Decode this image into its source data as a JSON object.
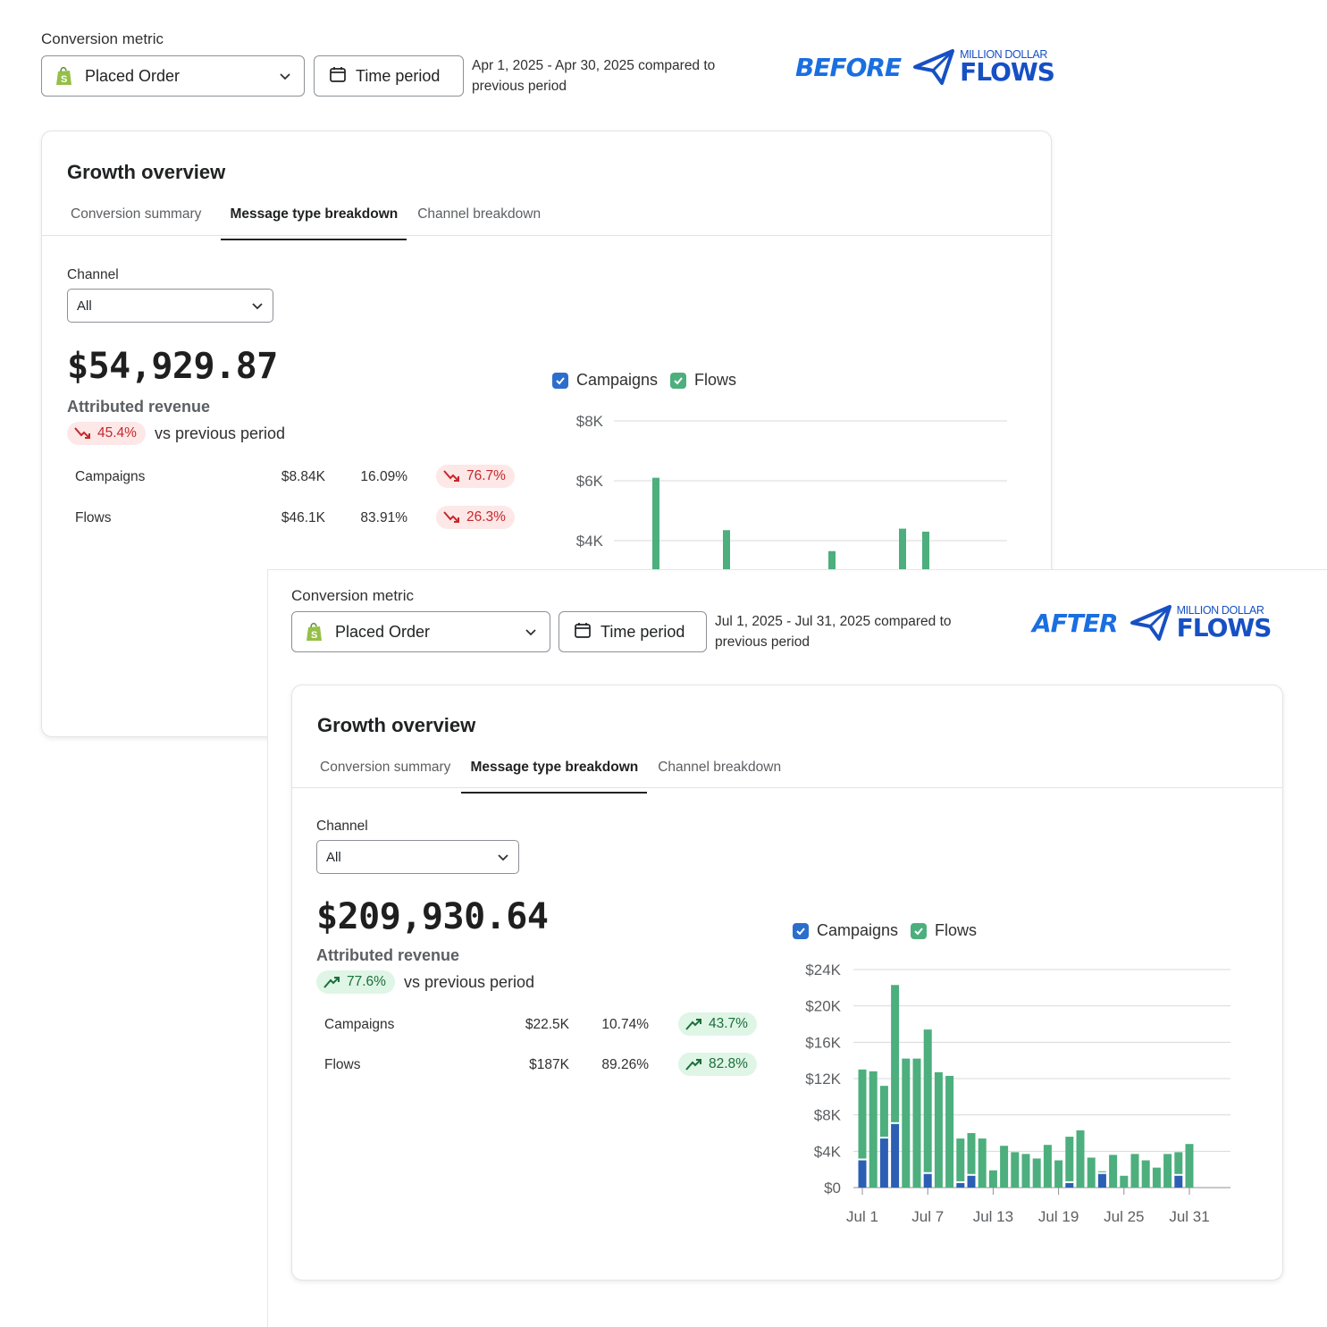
{
  "before": {
    "badge": "BEFORE",
    "brand_small": "MILLION DOLLAR",
    "brand_big": "FLOWS",
    "conversion_metric_label": "Conversion metric",
    "metric_value": "Placed Order",
    "time_button": "Time period",
    "period_line1": "Apr 1, 2025 - Apr 30, 2025 compared to",
    "period_line2": "previous period",
    "card_title": "Growth overview",
    "tabs": [
      "Conversion summary",
      "Message type breakdown",
      "Channel breakdown"
    ],
    "channel_label": "Channel",
    "channel_value": "All",
    "revenue": "$54,929.87",
    "revenue_label": "Attributed revenue",
    "change": "45.4%",
    "change_dir": "down",
    "vs_text": "vs previous period",
    "rows": [
      {
        "name": "Campaigns",
        "amount": "$8.84K",
        "share": "16.09%",
        "change": "76.7%",
        "dir": "down"
      },
      {
        "name": "Flows",
        "amount": "$46.1K",
        "share": "83.91%",
        "change": "26.3%",
        "dir": "down"
      }
    ],
    "legend": [
      "Campaigns",
      "Flows"
    ]
  },
  "after": {
    "badge": "AFTER",
    "brand_small": "MILLION DOLLAR",
    "brand_big": "FLOWS",
    "conversion_metric_label": "Conversion metric",
    "metric_value": "Placed Order",
    "time_button": "Time period",
    "period_line1": "Jul 1, 2025 - Jul 31, 2025 compared to",
    "period_line2": "previous period",
    "card_title": "Growth overview",
    "tabs": [
      "Conversion summary",
      "Message type breakdown",
      "Channel breakdown"
    ],
    "channel_label": "Channel",
    "channel_value": "All",
    "revenue": "$209,930.64",
    "revenue_label": "Attributed revenue",
    "change": "77.6%",
    "change_dir": "up",
    "vs_text": "vs previous period",
    "rows": [
      {
        "name": "Campaigns",
        "amount": "$22.5K",
        "share": "10.74%",
        "change": "43.7%",
        "dir": "up"
      },
      {
        "name": "Flows",
        "amount": "$187K",
        "share": "89.26%",
        "change": "82.8%",
        "dir": "up"
      }
    ],
    "legend": [
      "Campaigns",
      "Flows"
    ]
  },
  "colors": {
    "campaigns": "#2c5fb3",
    "flows": "#4caf7d",
    "checkbox_campaigns": "#2c6ecb",
    "checkbox_flows": "#4caf7d",
    "down": "#c5282a",
    "up": "#1b6e3a",
    "brand": "#1a6fe0"
  },
  "chart_data": [
    {
      "type": "bar",
      "stacked": true,
      "note_visible_portion": "partially obscured",
      "yticks": [
        "$8K",
        "$6K",
        "$4K"
      ],
      "ylim": [
        4000,
        8000
      ],
      "series": [
        {
          "name": "Flows",
          "values": [
            6100,
            4350,
            3650,
            4400,
            4300
          ]
        }
      ],
      "legend_placement": "top-left",
      "grid": true
    },
    {
      "type": "bar",
      "stacked": true,
      "categories": [
        "Jul 1",
        "Jul 2",
        "Jul 3",
        "Jul 4",
        "Jul 5",
        "Jul 6",
        "Jul 7",
        "Jul 8",
        "Jul 9",
        "Jul 10",
        "Jul 11",
        "Jul 12",
        "Jul 13",
        "Jul 14",
        "Jul 15",
        "Jul 16",
        "Jul 17",
        "Jul 18",
        "Jul 19",
        "Jul 20",
        "Jul 21",
        "Jul 22",
        "Jul 23",
        "Jul 24",
        "Jul 25",
        "Jul 26",
        "Jul 27",
        "Jul 28",
        "Jul 29",
        "Jul 30",
        "Jul 31"
      ],
      "xticks": [
        "Jul 1",
        "Jul 7",
        "Jul 13",
        "Jul 19",
        "Jul 25",
        "Jul 31"
      ],
      "yticks": [
        "$24K",
        "$20K",
        "$16K",
        "$12K",
        "$8K",
        "$4K",
        "$0"
      ],
      "ylim": [
        0,
        24000
      ],
      "series": [
        {
          "name": "Campaigns",
          "values": [
            3000,
            0,
            5400,
            7000,
            0,
            0,
            1500,
            0,
            0,
            500,
            1300,
            0,
            0,
            0,
            0,
            0,
            0,
            0,
            0,
            500,
            0,
            0,
            1500,
            0,
            0,
            0,
            0,
            0,
            0,
            1300,
            0
          ]
        },
        {
          "name": "Flows",
          "values": [
            10000,
            12800,
            5800,
            15300,
            14200,
            14200,
            15900,
            12700,
            12300,
            4900,
            4700,
            5400,
            1900,
            4600,
            3900,
            3700,
            3200,
            4700,
            3000,
            5100,
            6300,
            3300,
            300,
            3600,
            1300,
            3700,
            3000,
            2200,
            3700,
            2600,
            4800
          ]
        }
      ],
      "legend_placement": "top-left",
      "grid": true
    }
  ]
}
